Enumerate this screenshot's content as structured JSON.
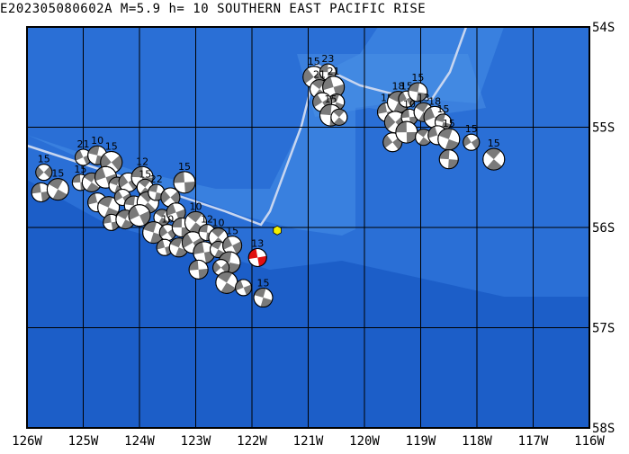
{
  "title": "E202305080602A M=5.9 h= 10 SOUTHERN EAST PACIFIC RISE",
  "map": {
    "lon_ticks": [
      {
        "lon": -126,
        "label": "126W"
      },
      {
        "lon": -125,
        "label": "125W"
      },
      {
        "lon": -124,
        "label": "124W"
      },
      {
        "lon": -123,
        "label": "123W"
      },
      {
        "lon": -122,
        "label": "122W"
      },
      {
        "lon": -121,
        "label": "121W"
      },
      {
        "lon": -120,
        "label": "120W"
      },
      {
        "lon": -119,
        "label": "119W"
      },
      {
        "lon": -118,
        "label": "118W"
      },
      {
        "lon": -117,
        "label": "117W"
      },
      {
        "lon": -116,
        "label": "116W"
      }
    ],
    "lat_ticks": [
      {
        "lat": -54,
        "label": "54S"
      },
      {
        "lat": -55,
        "label": "55S"
      },
      {
        "lat": -56,
        "label": "56S"
      },
      {
        "lat": -57,
        "label": "57S"
      },
      {
        "lat": -58,
        "label": "58S"
      }
    ],
    "lon_range": [
      -126,
      -116
    ],
    "lat_range": [
      -58,
      -54
    ],
    "colors": {
      "ocean_deep": "#1c5ec8",
      "ocean_mid": "#2a6fd6",
      "ridge_shallow": "#3c84e0",
      "grid": "#000000",
      "plate_boundary": "#c8d6f0",
      "beachball_shade": "#7a7a7a",
      "main_event_shade": "#e01010",
      "epicenter": "#f4f000"
    }
  },
  "main_event": {
    "lon": -121.9,
    "lat": -56.3,
    "depth_label": "13"
  },
  "epicenter": {
    "lon": -121.55,
    "lat": -56.03
  },
  "events": [
    {
      "lon": -125.7,
      "lat": -55.45,
      "label": "15"
    },
    {
      "lon": -125.75,
      "lat": -55.65,
      "label": ""
    },
    {
      "lon": -125.45,
      "lat": -55.62,
      "label": "15"
    },
    {
      "lon": -125.0,
      "lat": -55.3,
      "label": "21"
    },
    {
      "lon": -124.75,
      "lat": -55.28,
      "label": "10"
    },
    {
      "lon": -124.5,
      "lat": -55.35,
      "label": "15"
    },
    {
      "lon": -125.05,
      "lat": -55.55,
      "label": "15"
    },
    {
      "lon": -124.85,
      "lat": -55.55,
      "label": ""
    },
    {
      "lon": -124.6,
      "lat": -55.5,
      "label": ""
    },
    {
      "lon": -124.4,
      "lat": -55.58,
      "label": ""
    },
    {
      "lon": -124.2,
      "lat": -55.55,
      "label": ""
    },
    {
      "lon": -123.95,
      "lat": -55.5,
      "label": "12"
    },
    {
      "lon": -123.9,
      "lat": -55.6,
      "label": "15"
    },
    {
      "lon": -124.75,
      "lat": -55.75,
      "label": ""
    },
    {
      "lon": -124.55,
      "lat": -55.8,
      "label": ""
    },
    {
      "lon": -124.3,
      "lat": -55.7,
      "label": ""
    },
    {
      "lon": -124.1,
      "lat": -55.78,
      "label": ""
    },
    {
      "lon": -123.85,
      "lat": -55.75,
      "label": ""
    },
    {
      "lon": -124.5,
      "lat": -55.95,
      "label": ""
    },
    {
      "lon": -124.25,
      "lat": -55.92,
      "label": ""
    },
    {
      "lon": -124.0,
      "lat": -55.88,
      "label": ""
    },
    {
      "lon": -123.7,
      "lat": -55.65,
      "label": "22"
    },
    {
      "lon": -123.45,
      "lat": -55.7,
      "label": ""
    },
    {
      "lon": -123.2,
      "lat": -55.55,
      "label": "15"
    },
    {
      "lon": -123.6,
      "lat": -55.9,
      "label": ""
    },
    {
      "lon": -123.35,
      "lat": -55.85,
      "label": ""
    },
    {
      "lon": -123.75,
      "lat": -56.05,
      "label": ""
    },
    {
      "lon": -123.5,
      "lat": -56.05,
      "label": "10"
    },
    {
      "lon": -123.25,
      "lat": -56.0,
      "label": ""
    },
    {
      "lon": -123.0,
      "lat": -55.95,
      "label": "10"
    },
    {
      "lon": -123.55,
      "lat": -56.2,
      "label": ""
    },
    {
      "lon": -123.3,
      "lat": -56.2,
      "label": ""
    },
    {
      "lon": -123.05,
      "lat": -56.15,
      "label": ""
    },
    {
      "lon": -122.8,
      "lat": -56.05,
      "label": "12"
    },
    {
      "lon": -122.6,
      "lat": -56.1,
      "label": "10"
    },
    {
      "lon": -122.85,
      "lat": -56.25,
      "label": ""
    },
    {
      "lon": -122.6,
      "lat": -56.22,
      "label": ""
    },
    {
      "lon": -122.35,
      "lat": -56.18,
      "label": "15"
    },
    {
      "lon": -122.4,
      "lat": -56.35,
      "label": ""
    },
    {
      "lon": -122.55,
      "lat": -56.4,
      "label": ""
    },
    {
      "lon": -122.95,
      "lat": -56.42,
      "label": ""
    },
    {
      "lon": -122.45,
      "lat": -56.55,
      "label": ""
    },
    {
      "lon": -122.15,
      "lat": -56.6,
      "label": ""
    },
    {
      "lon": -121.8,
      "lat": -56.7,
      "label": "15"
    },
    {
      "lon": -120.9,
      "lat": -54.5,
      "label": "15"
    },
    {
      "lon": -120.65,
      "lat": -54.45,
      "label": "23"
    },
    {
      "lon": -120.8,
      "lat": -54.62,
      "label": "21"
    },
    {
      "lon": -120.55,
      "lat": -54.6,
      "label": "21"
    },
    {
      "lon": -120.5,
      "lat": -54.75,
      "label": ""
    },
    {
      "lon": -120.75,
      "lat": -54.75,
      "label": ""
    },
    {
      "lon": -120.6,
      "lat": -54.88,
      "label": "15"
    },
    {
      "lon": -120.45,
      "lat": -54.9,
      "label": ""
    },
    {
      "lon": -119.6,
      "lat": -54.85,
      "label": "15"
    },
    {
      "lon": -119.4,
      "lat": -54.75,
      "label": "18"
    },
    {
      "lon": -119.25,
      "lat": -54.72,
      "label": "15"
    },
    {
      "lon": -119.05,
      "lat": -54.65,
      "label": "15"
    },
    {
      "lon": -119.45,
      "lat": -54.95,
      "label": ""
    },
    {
      "lon": -119.2,
      "lat": -54.9,
      "label": "10"
    },
    {
      "lon": -118.95,
      "lat": -54.85,
      "label": "13"
    },
    {
      "lon": -118.75,
      "lat": -54.9,
      "label": "18"
    },
    {
      "lon": -118.6,
      "lat": -54.95,
      "label": "15"
    },
    {
      "lon": -119.5,
      "lat": -55.15,
      "label": ""
    },
    {
      "lon": -119.25,
      "lat": -55.05,
      "label": ""
    },
    {
      "lon": -118.95,
      "lat": -55.1,
      "label": ""
    },
    {
      "lon": -118.7,
      "lat": -55.08,
      "label": ""
    },
    {
      "lon": -118.5,
      "lat": -55.12,
      "label": "15"
    },
    {
      "lon": -118.1,
      "lat": -55.15,
      "label": "15"
    },
    {
      "lon": -118.5,
      "lat": -55.32,
      "label": ""
    },
    {
      "lon": -117.7,
      "lat": -55.32,
      "label": "15"
    }
  ]
}
